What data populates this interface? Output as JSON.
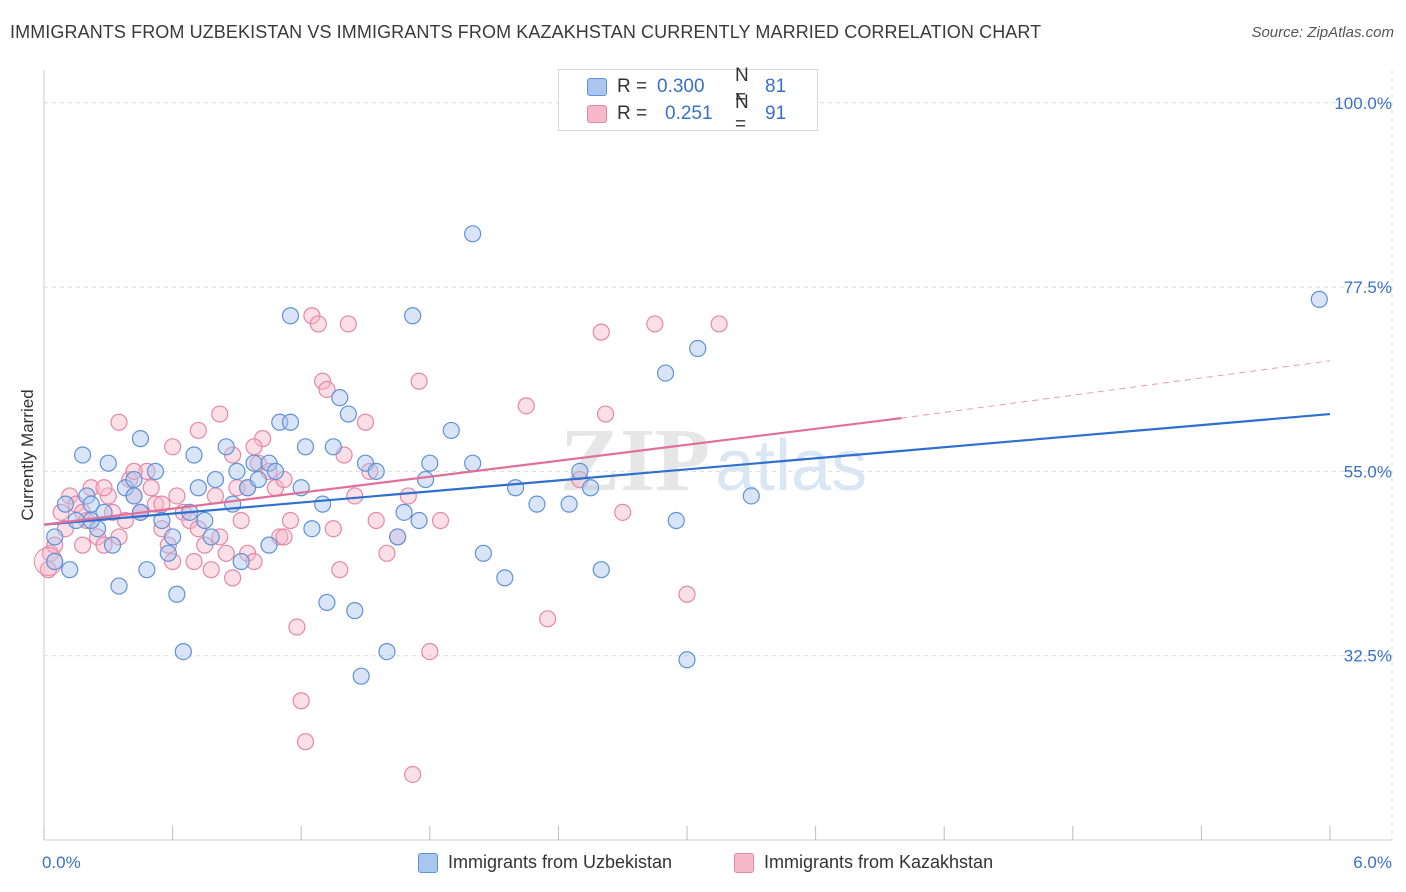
{
  "header": {
    "title": "IMMIGRANTS FROM UZBEKISTAN VS IMMIGRANTS FROM KAZAKHSTAN CURRENTLY MARRIED CORRELATION CHART",
    "source": "Source: ZipAtlas.com"
  },
  "watermark": {
    "zip": "ZIP",
    "atlas": "atlas"
  },
  "legend_top": {
    "rows": [
      {
        "r_label": "R =",
        "r_value": "0.300",
        "n_label": "N =",
        "n_value": "81"
      },
      {
        "r_label": "R =",
        "r_value": "0.251",
        "n_label": "N =",
        "n_value": "91"
      }
    ]
  },
  "colors": {
    "blue_fill": "#aac6ee",
    "blue_stroke": "#5f92d8",
    "blue_line": "#2f6fce",
    "pink_fill": "#f6b8ca",
    "pink_stroke": "#e687a8",
    "pink_line": "#e0709a",
    "tick_label": "#3a70c8",
    "grid": "#dcdcdc"
  },
  "chart_data": {
    "type": "scatter",
    "title": "IMMIGRANTS FROM UZBEKISTAN VS IMMIGRANTS FROM KAZAKHSTAN CURRENTLY MARRIED CORRELATION CHART",
    "xlabel": "",
    "ylabel": "Currently Married",
    "xlim": [
      0,
      6
    ],
    "ylim": [
      10,
      104
    ],
    "x_tick_labels": [
      "0.0%",
      "6.0%"
    ],
    "y_ticks": [
      32.5,
      55.0,
      77.5,
      100.0
    ],
    "y_tick_labels": [
      "32.5%",
      "55.0%",
      "77.5%",
      "100.0%"
    ],
    "grid": true,
    "legend_position": "bottom",
    "series": [
      {
        "name": "Immigrants from Uzbekistan",
        "color": "blue",
        "r": 0.3,
        "n": 81,
        "trend": {
          "x0": 0.0,
          "y0": 48.5,
          "x1": 6.0,
          "y1": 62.0
        },
        "points": [
          [
            0.05,
            44
          ],
          [
            0.05,
            47
          ],
          [
            0.1,
            51
          ],
          [
            0.12,
            43
          ],
          [
            0.15,
            49
          ],
          [
            0.2,
            52
          ],
          [
            0.22,
            51
          ],
          [
            0.25,
            48
          ],
          [
            0.28,
            50
          ],
          [
            0.3,
            56
          ],
          [
            0.35,
            41
          ],
          [
            0.38,
            53
          ],
          [
            0.42,
            52
          ],
          [
            0.45,
            50
          ],
          [
            0.48,
            43
          ],
          [
            0.52,
            55
          ],
          [
            0.55,
            49
          ],
          [
            0.6,
            47
          ],
          [
            0.62,
            40
          ],
          [
            0.65,
            33
          ],
          [
            0.7,
            57
          ],
          [
            0.72,
            53
          ],
          [
            0.75,
            49
          ],
          [
            0.78,
            47
          ],
          [
            0.8,
            54
          ],
          [
            0.85,
            58
          ],
          [
            0.88,
            51
          ],
          [
            0.9,
            55
          ],
          [
            0.95,
            53
          ],
          [
            0.98,
            56
          ],
          [
            1.0,
            54
          ],
          [
            1.05,
            46
          ],
          [
            1.1,
            61
          ],
          [
            1.15,
            61
          ],
          [
            1.2,
            53
          ],
          [
            1.25,
            48
          ],
          [
            1.3,
            51
          ],
          [
            1.32,
            39
          ],
          [
            1.35,
            58
          ],
          [
            1.38,
            64
          ],
          [
            1.42,
            62
          ],
          [
            1.45,
            38
          ],
          [
            1.48,
            30
          ],
          [
            1.5,
            56
          ],
          [
            1.55,
            55
          ],
          [
            1.6,
            33
          ],
          [
            1.65,
            47
          ],
          [
            1.68,
            50
          ],
          [
            1.72,
            74
          ],
          [
            1.75,
            49
          ],
          [
            1.8,
            56
          ],
          [
            1.9,
            60
          ],
          [
            2.0,
            56
          ],
          [
            2.05,
            45
          ],
          [
            2.15,
            42
          ],
          [
            2.2,
            53
          ],
          [
            2.3,
            51
          ],
          [
            2.45,
            51
          ],
          [
            2.55,
            53
          ],
          [
            2.6,
            43
          ],
          [
            2.9,
            67
          ],
          [
            2.95,
            49
          ],
          [
            3.0,
            32
          ],
          [
            3.05,
            70
          ],
          [
            3.3,
            52
          ],
          [
            1.15,
            74
          ],
          [
            1.05,
            56
          ],
          [
            2.0,
            84
          ],
          [
            0.92,
            44
          ],
          [
            0.58,
            45
          ],
          [
            0.22,
            49
          ],
          [
            0.18,
            57
          ],
          [
            1.22,
            58
          ],
          [
            1.78,
            54
          ],
          [
            2.5,
            55
          ],
          [
            0.32,
            46
          ],
          [
            0.42,
            54
          ],
          [
            0.68,
            50
          ],
          [
            0.45,
            59
          ],
          [
            1.08,
            55
          ],
          [
            5.95,
            76
          ]
        ]
      },
      {
        "name": "Immigrants from Kazakhstan",
        "color": "pink",
        "r": 0.251,
        "n": 91,
        "trend": {
          "x0": 0.0,
          "y0": 48.5,
          "x1": 4.0,
          "y1": 61.5,
          "dashed_to": {
            "x1": 6.0,
            "y1": 68.5
          }
        },
        "points": [
          [
            0.02,
            43
          ],
          [
            0.03,
            45
          ],
          [
            0.05,
            46
          ],
          [
            0.08,
            50
          ],
          [
            0.1,
            48
          ],
          [
            0.12,
            52
          ],
          [
            0.15,
            51
          ],
          [
            0.18,
            50
          ],
          [
            0.2,
            49
          ],
          [
            0.22,
            53
          ],
          [
            0.25,
            47
          ],
          [
            0.28,
            46
          ],
          [
            0.3,
            52
          ],
          [
            0.32,
            50
          ],
          [
            0.35,
            47
          ],
          [
            0.38,
            49
          ],
          [
            0.4,
            54
          ],
          [
            0.42,
            52
          ],
          [
            0.45,
            50
          ],
          [
            0.48,
            55
          ],
          [
            0.5,
            53
          ],
          [
            0.52,
            51
          ],
          [
            0.55,
            48
          ],
          [
            0.58,
            46
          ],
          [
            0.6,
            44
          ],
          [
            0.62,
            52
          ],
          [
            0.65,
            50
          ],
          [
            0.68,
            49
          ],
          [
            0.7,
            44
          ],
          [
            0.72,
            48
          ],
          [
            0.75,
            46
          ],
          [
            0.78,
            43
          ],
          [
            0.8,
            52
          ],
          [
            0.82,
            47
          ],
          [
            0.85,
            45
          ],
          [
            0.88,
            42
          ],
          [
            0.9,
            53
          ],
          [
            0.92,
            49
          ],
          [
            0.95,
            45
          ],
          [
            0.98,
            44
          ],
          [
            1.0,
            56
          ],
          [
            1.02,
            59
          ],
          [
            1.05,
            55
          ],
          [
            1.08,
            53
          ],
          [
            1.1,
            47
          ],
          [
            1.12,
            54
          ],
          [
            1.15,
            49
          ],
          [
            1.18,
            36
          ],
          [
            1.2,
            27
          ],
          [
            1.22,
            22
          ],
          [
            1.25,
            74
          ],
          [
            1.28,
            73
          ],
          [
            1.3,
            66
          ],
          [
            1.32,
            65
          ],
          [
            1.35,
            48
          ],
          [
            1.38,
            43
          ],
          [
            1.4,
            57
          ],
          [
            1.42,
            73
          ],
          [
            1.45,
            52
          ],
          [
            1.5,
            61
          ],
          [
            1.52,
            55
          ],
          [
            1.55,
            49
          ],
          [
            1.6,
            45
          ],
          [
            1.65,
            47
          ],
          [
            1.7,
            52
          ],
          [
            1.72,
            18
          ],
          [
            1.75,
            66
          ],
          [
            1.8,
            33
          ],
          [
            1.85,
            49
          ],
          [
            2.25,
            63
          ],
          [
            2.35,
            37
          ],
          [
            2.5,
            54
          ],
          [
            2.6,
            72
          ],
          [
            2.62,
            62
          ],
          [
            2.7,
            50
          ],
          [
            2.85,
            73
          ],
          [
            3.0,
            40
          ],
          [
            3.15,
            73
          ],
          [
            0.82,
            62
          ],
          [
            0.6,
            58
          ],
          [
            0.35,
            61
          ],
          [
            0.45,
            50
          ],
          [
            0.88,
            57
          ],
          [
            0.55,
            51
          ],
          [
            0.72,
            60
          ],
          [
            0.95,
            53
          ],
          [
            1.12,
            47
          ],
          [
            0.28,
            53
          ],
          [
            0.18,
            46
          ],
          [
            0.98,
            58
          ],
          [
            0.42,
            55
          ]
        ]
      }
    ]
  },
  "legend_bottom": {
    "items": [
      {
        "label": "Immigrants from Uzbekistan"
      },
      {
        "label": "Immigrants from Kazakhstan"
      }
    ]
  }
}
